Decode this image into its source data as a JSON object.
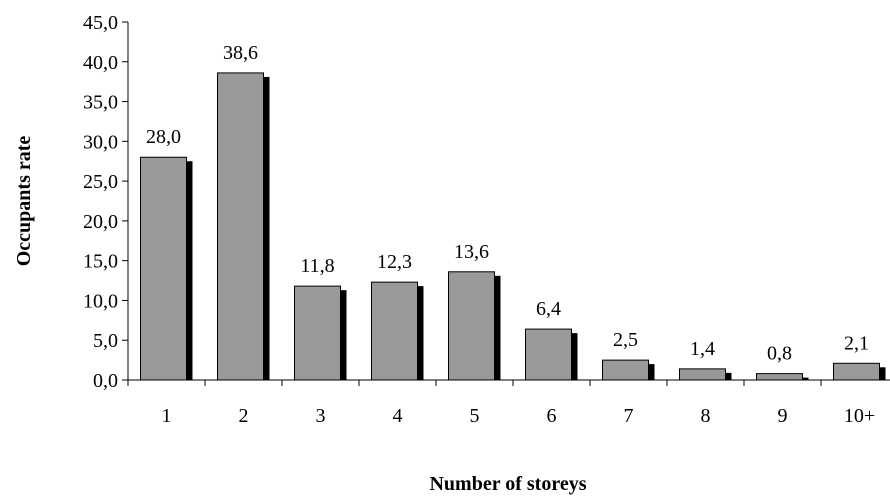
{
  "chart_data": {
    "type": "bar",
    "title": "",
    "xlabel": "Number of storeys",
    "ylabel": "Occupants rate",
    "categories": [
      "1",
      "2",
      "3",
      "4",
      "5",
      "6",
      "7",
      "8",
      "9",
      "10+"
    ],
    "values": [
      28.0,
      38.6,
      11.8,
      12.3,
      13.6,
      6.4,
      2.5,
      1.4,
      0.8,
      2.1
    ],
    "data_labels": [
      "28,0",
      "38,6",
      "11,8",
      "12,3",
      "13,6",
      "6,4",
      "2,5",
      "1,4",
      "0,8",
      "2,1"
    ],
    "ylim": [
      0,
      45
    ],
    "yticks": [
      0,
      5,
      10,
      15,
      20,
      25,
      30,
      35,
      40,
      45
    ],
    "ytick_labels": [
      "0,0",
      "5,0",
      "10,0",
      "15,0",
      "20,0",
      "25,0",
      "30,0",
      "35,0",
      "40,0",
      "45,0"
    ],
    "grid": false,
    "legend": "none",
    "colors": {
      "bar_fill": "#999999",
      "bar_shadow": "#000000",
      "axis": "#000000"
    }
  }
}
